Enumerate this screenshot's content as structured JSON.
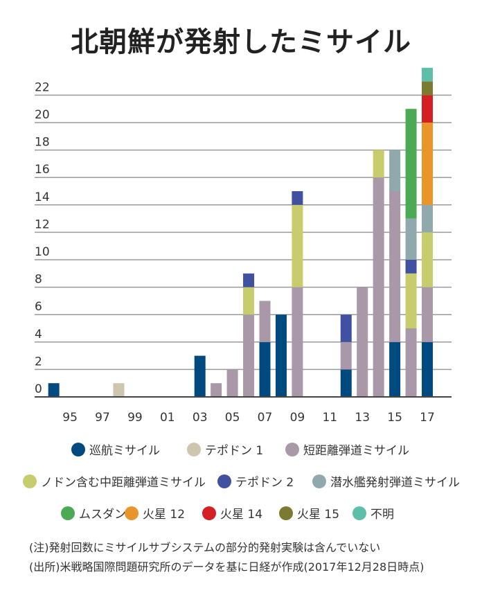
{
  "chart_data": {
    "type": "bar",
    "stacked": true,
    "title": "北朝鮮が発射したミサイル",
    "x": [
      1994,
      1998,
      2003,
      2004,
      2005,
      2006,
      2007,
      2008,
      2009,
      2012,
      2013,
      2014,
      2015,
      2016,
      2017
    ],
    "x_tick_labels": [
      "95",
      "97",
      "99",
      "01",
      "03",
      "05",
      "07",
      "09",
      "11",
      "13",
      "15",
      "17"
    ],
    "y_tick_labels": [
      "0",
      "2",
      "4",
      "6",
      "8",
      "10",
      "12",
      "14",
      "16",
      "18",
      "20",
      "22"
    ],
    "ylim": [
      0,
      24
    ],
    "grid": true,
    "legend_position": "bottom",
    "series": [
      {
        "name": "巡航ミサイル",
        "color": "#004a80",
        "values": [
          1,
          0,
          3,
          0,
          0,
          0,
          4,
          6,
          0,
          2,
          0,
          0,
          4,
          0,
          4
        ]
      },
      {
        "name": "テポドン 1",
        "color": "#cfc6b0",
        "values": [
          0,
          1,
          0,
          0,
          0,
          0,
          0,
          0,
          0,
          0,
          0,
          0,
          0,
          0,
          0
        ]
      },
      {
        "name": "短距離弾道ミサイル",
        "color": "#a998a8",
        "values": [
          0,
          0,
          0,
          1,
          2,
          6,
          3,
          0,
          8,
          2,
          8,
          16,
          11,
          5,
          4
        ]
      },
      {
        "name": "ノドン含む中距離弾道ミサイル",
        "color": "#c7cc6c",
        "values": [
          0,
          0,
          0,
          0,
          0,
          2,
          0,
          0,
          6,
          0,
          0,
          2,
          0,
          4,
          4
        ]
      },
      {
        "name": "テポドン 2",
        "color": "#3f51a0",
        "values": [
          0,
          0,
          0,
          0,
          0,
          1,
          0,
          0,
          1,
          2,
          0,
          0,
          0,
          1,
          0
        ]
      },
      {
        "name": "潜水艦発射弾道ミサイル",
        "color": "#8fa9ad",
        "values": [
          0,
          0,
          0,
          0,
          0,
          0,
          0,
          0,
          0,
          0,
          0,
          0,
          3,
          3,
          2
        ]
      },
      {
        "name": "ムスダン",
        "color": "#4caa55",
        "values": [
          0,
          0,
          0,
          0,
          0,
          0,
          0,
          0,
          0,
          0,
          0,
          0,
          0,
          8,
          0
        ]
      },
      {
        "name": "火星 12",
        "color": "#e8952a",
        "values": [
          0,
          0,
          0,
          0,
          0,
          0,
          0,
          0,
          0,
          0,
          0,
          0,
          0,
          0,
          6
        ]
      },
      {
        "name": "火星 14",
        "color": "#d42025",
        "values": [
          0,
          0,
          0,
          0,
          0,
          0,
          0,
          0,
          0,
          0,
          0,
          0,
          0,
          0,
          2
        ]
      },
      {
        "name": "火星 15",
        "color": "#7a7a30",
        "values": [
          0,
          0,
          0,
          0,
          0,
          0,
          0,
          0,
          0,
          0,
          0,
          0,
          0,
          0,
          1
        ]
      },
      {
        "name": "不明",
        "color": "#5dbfa9",
        "values": [
          0,
          0,
          0,
          0,
          0,
          0,
          0,
          0,
          0,
          0,
          0,
          0,
          0,
          0,
          1
        ]
      }
    ]
  },
  "notes": [
    "(注)発射回数にミサイルサブシステムの部分的発射実験は含んでいない",
    "(出所)米戦略国際問題研究所のデータを基に日経が作成(2017年12月28日時点)"
  ]
}
